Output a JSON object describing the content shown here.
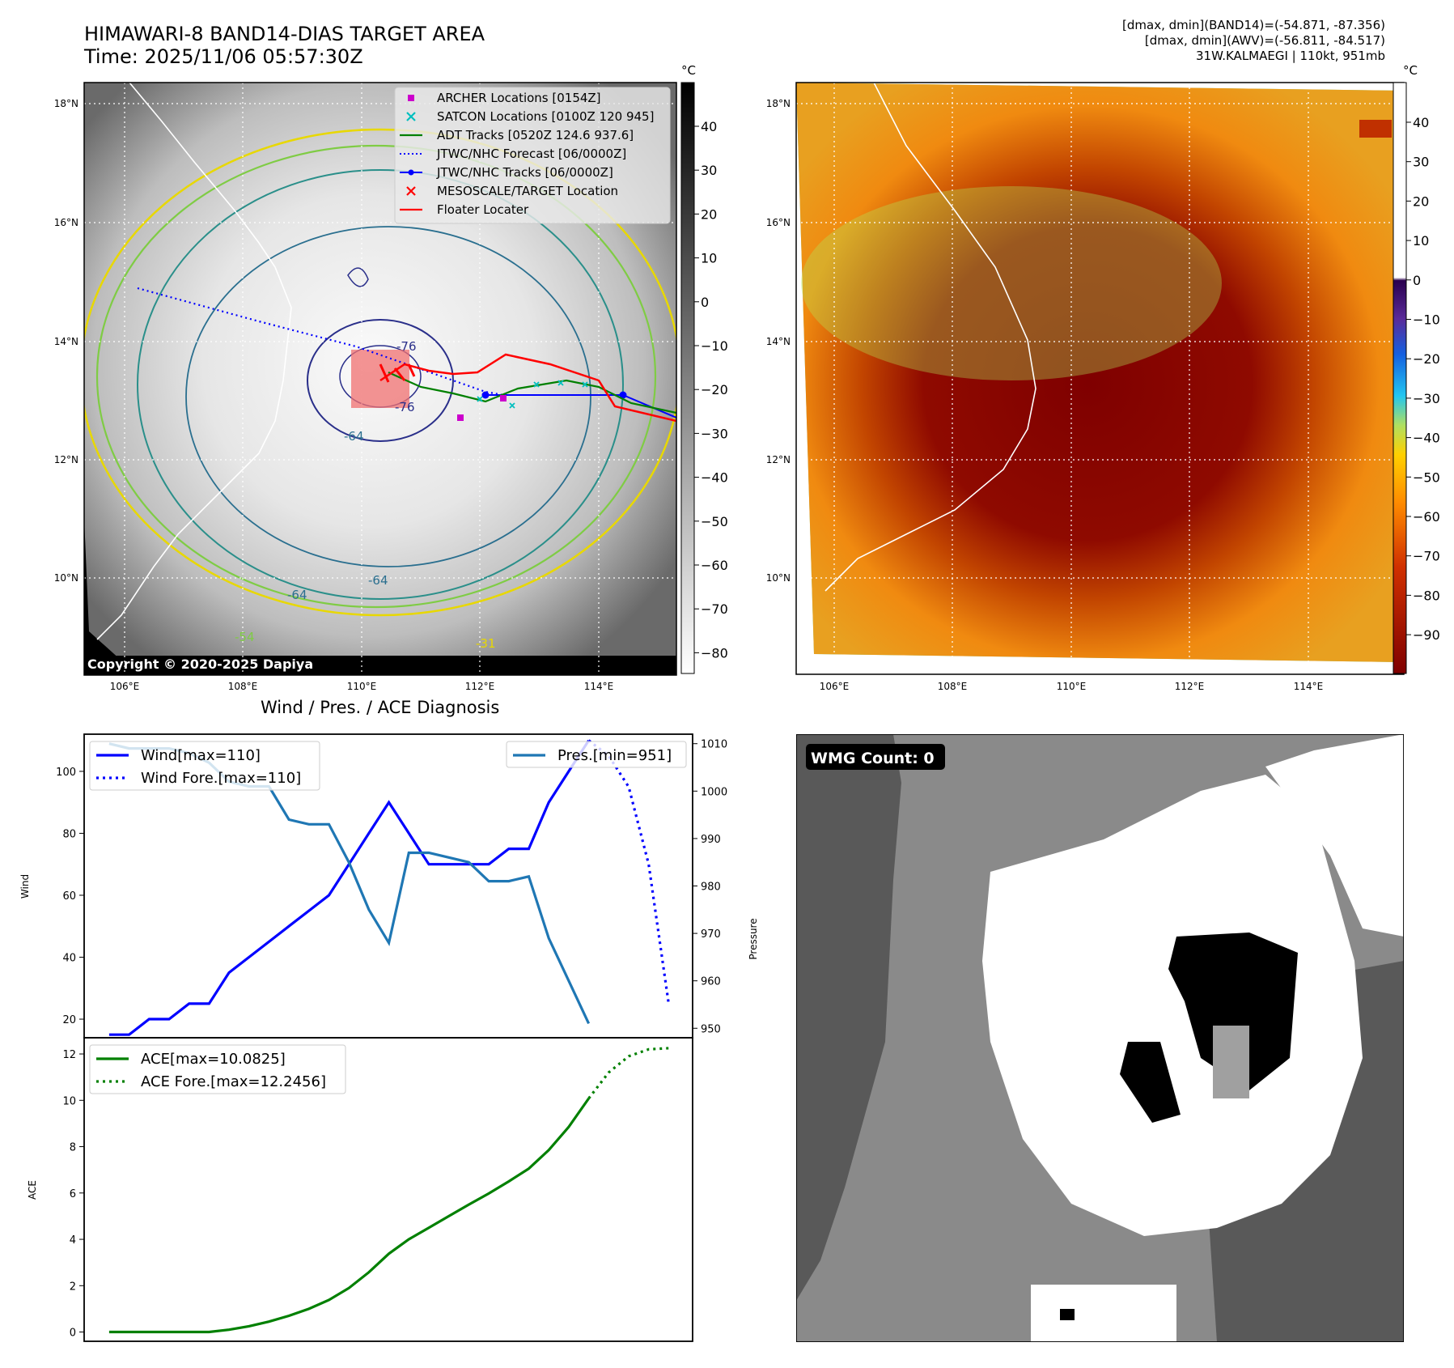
{
  "header": {
    "title_line1": "HIMAWARI-8 BAND14-DIAS TARGET AREA",
    "title_line2": "Time: 2025/11/06 05:57:30Z",
    "info_line1": "[dmax, dmin](BAND14)=(-54.871, -87.356)",
    "info_line2": "[dmax, dmin](AWV)=(-56.811, -84.517)",
    "info_line3": "31W.KALMAEGI | 110kt, 951mb"
  },
  "map": {
    "lon_labels": [
      "106°E",
      "108°E",
      "110°E",
      "112°E",
      "114°E"
    ],
    "lat_labels": [
      "18°N",
      "16°N",
      "14°N",
      "12°N",
      "10°N"
    ],
    "copyright": "Copyright © 2020-2025 Dapiya",
    "contour_labels": [
      "-64",
      "-64",
      "-64",
      "-76",
      "-76",
      "-54",
      "-31"
    ],
    "legend": [
      {
        "label": "ARCHER Locations [0154Z]",
        "color": "#cc00cc",
        "marker": "square"
      },
      {
        "label": "SATCON Locations [0100Z 120 945]",
        "color": "#00bfbf",
        "marker": "x"
      },
      {
        "label": "ADT Tracks [0520Z 124.6 937.6]",
        "color": "#008000",
        "marker": "line"
      },
      {
        "label": "JTWC/NHC Forecast [06/0000Z]",
        "color": "#0000ff",
        "marker": "dotted"
      },
      {
        "label": "JTWC/NHC Tracks [06/0000Z]",
        "color": "#0000ff",
        "marker": "line-dot"
      },
      {
        "label": "MESOSCALE/TARGET Location",
        "color": "#ff0000",
        "marker": "x"
      },
      {
        "label": "Floater Locater",
        "color": "#ff0000",
        "marker": "line"
      }
    ]
  },
  "colorbars": {
    "unit": "°C",
    "left_ticks": [
      "40",
      "30",
      "20",
      "10",
      "0",
      "−10",
      "−20",
      "−30",
      "−40",
      "−50",
      "−60",
      "−70",
      "−80"
    ],
    "right_ticks": [
      "40",
      "30",
      "20",
      "10",
      "0",
      "−10",
      "−20",
      "−30",
      "−40",
      "−50",
      "−60",
      "−70",
      "−80",
      "−90"
    ]
  },
  "wmg": {
    "label": "WMG Count: 0"
  },
  "chart_data": [
    {
      "type": "line",
      "title": "Wind / Pres. / ACE Diagnosis",
      "ylabel": "Wind",
      "y2label": "Pressure",
      "ylim": [
        14,
        112
      ],
      "y2lim": [
        948,
        1012
      ],
      "yticks": [
        20,
        40,
        60,
        80,
        100
      ],
      "y2ticks": [
        950,
        960,
        970,
        980,
        990,
        1000,
        1010
      ],
      "x": [
        0,
        1,
        2,
        3,
        4,
        5,
        6,
        7,
        8,
        9,
        10,
        11,
        12,
        13,
        14,
        15,
        16,
        17,
        18,
        19,
        20,
        21,
        22,
        23,
        24,
        25,
        26
      ],
      "series": [
        {
          "name": "Wind[max=110]",
          "legend": "Wind[max=110]",
          "color": "#0000ff",
          "style": "solid",
          "axis": "left",
          "x": [
            0,
            1,
            2,
            3,
            4,
            5,
            6,
            7,
            8,
            9,
            10,
            11,
            12,
            13,
            14,
            15,
            16,
            17,
            18,
            19,
            20,
            21,
            22,
            23,
            24
          ],
          "values": [
            15,
            15,
            20,
            20,
            25,
            25,
            35,
            40,
            45,
            50,
            55,
            60,
            70,
            80,
            90,
            80,
            70,
            70,
            70,
            70,
            75,
            75,
            90,
            100,
            110
          ]
        },
        {
          "name": "Wind Fore.[max=110]",
          "legend": "Wind Fore.[max=110]",
          "color": "#0000ff",
          "style": "dotted",
          "axis": "left",
          "x": [
            24,
            25,
            26,
            27,
            28
          ],
          "values": [
            110,
            105,
            95,
            70,
            25
          ]
        },
        {
          "name": "Pres.[min=951]",
          "legend": "Pres.[min=951]",
          "color": "#1f77b4",
          "style": "solid",
          "axis": "right",
          "x": [
            0,
            1,
            2,
            3,
            4,
            5,
            6,
            7,
            8,
            9,
            10,
            11,
            12,
            13,
            14,
            15,
            16,
            17,
            18,
            19,
            20,
            21,
            22,
            23,
            24
          ],
          "values": [
            1010,
            1009,
            1009,
            1009,
            1008,
            1006,
            1002,
            1001,
            1001,
            994,
            993,
            993,
            985,
            975,
            968,
            987,
            987,
            986,
            985,
            981,
            981,
            982,
            969,
            960,
            951
          ]
        }
      ]
    },
    {
      "type": "line",
      "ylabel": "ACE",
      "ylim": [
        -0.4,
        12.7
      ],
      "yticks": [
        0,
        2,
        4,
        6,
        8,
        10,
        12
      ],
      "series": [
        {
          "name": "ACE[max=10.0825]",
          "legend": "ACE[max=10.0825]",
          "color": "#008000",
          "style": "solid",
          "x": [
            0,
            1,
            2,
            3,
            4,
            5,
            6,
            7,
            8,
            9,
            10,
            11,
            12,
            13,
            14,
            15,
            16,
            17,
            18,
            19,
            20,
            21,
            22,
            23,
            24
          ],
          "values": [
            0,
            0,
            0,
            0,
            0,
            0,
            0.1,
            0.25,
            0.45,
            0.7,
            1.0,
            1.38,
            1.9,
            2.58,
            3.38,
            4.0,
            4.5,
            5.0,
            5.5,
            5.98,
            6.5,
            7.05,
            7.85,
            8.85,
            10.08
          ]
        },
        {
          "name": "ACE Fore.[max=12.2456]",
          "legend": "ACE Fore.[max=12.2456]",
          "color": "#008000",
          "style": "dotted",
          "x": [
            24,
            25,
            26,
            27,
            28
          ],
          "values": [
            10.08,
            11.2,
            11.9,
            12.2,
            12.25
          ]
        }
      ]
    }
  ]
}
